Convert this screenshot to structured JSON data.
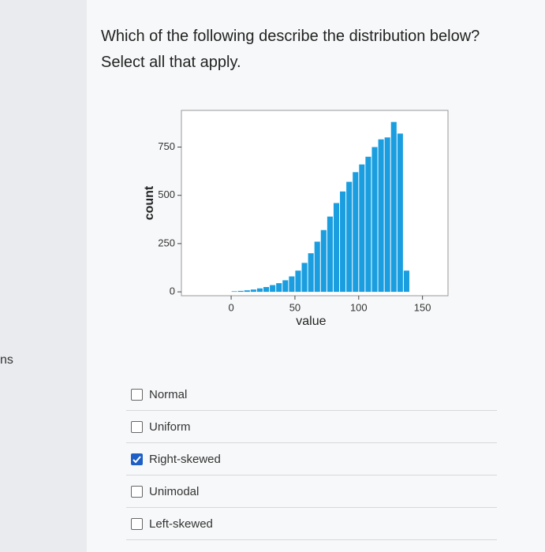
{
  "side_text": "ns",
  "question": {
    "lines": [
      "Which of the following describe the distribution below?",
      "Select all that apply."
    ]
  },
  "chart_data": {
    "type": "histogram",
    "color": "#1a9ee0",
    "xlabel": "value",
    "ylabel": "count",
    "bins": [
      0,
      5,
      10,
      15,
      20,
      25,
      30,
      35,
      40,
      45,
      50,
      55,
      60,
      65,
      70,
      75,
      80,
      85,
      90,
      95,
      100,
      105,
      110,
      115,
      120,
      125,
      130,
      135,
      140
    ],
    "values": [
      3,
      5,
      8,
      12,
      18,
      25,
      35,
      45,
      60,
      80,
      110,
      150,
      200,
      260,
      320,
      390,
      460,
      520,
      570,
      620,
      660,
      700,
      750,
      790,
      800,
      880,
      820,
      110
    ],
    "xlim": [
      -39,
      170
    ],
    "xticks": [
      0,
      50,
      100,
      150
    ],
    "ylim": [
      -20,
      940
    ],
    "yticks": [
      0,
      250,
      500,
      750
    ]
  },
  "options": [
    {
      "label": "Normal",
      "checked": false
    },
    {
      "label": "Uniform",
      "checked": false
    },
    {
      "label": "Right-skewed",
      "checked": true
    },
    {
      "label": "Unimodal",
      "checked": false
    },
    {
      "label": "Left-skewed",
      "checked": false
    }
  ]
}
